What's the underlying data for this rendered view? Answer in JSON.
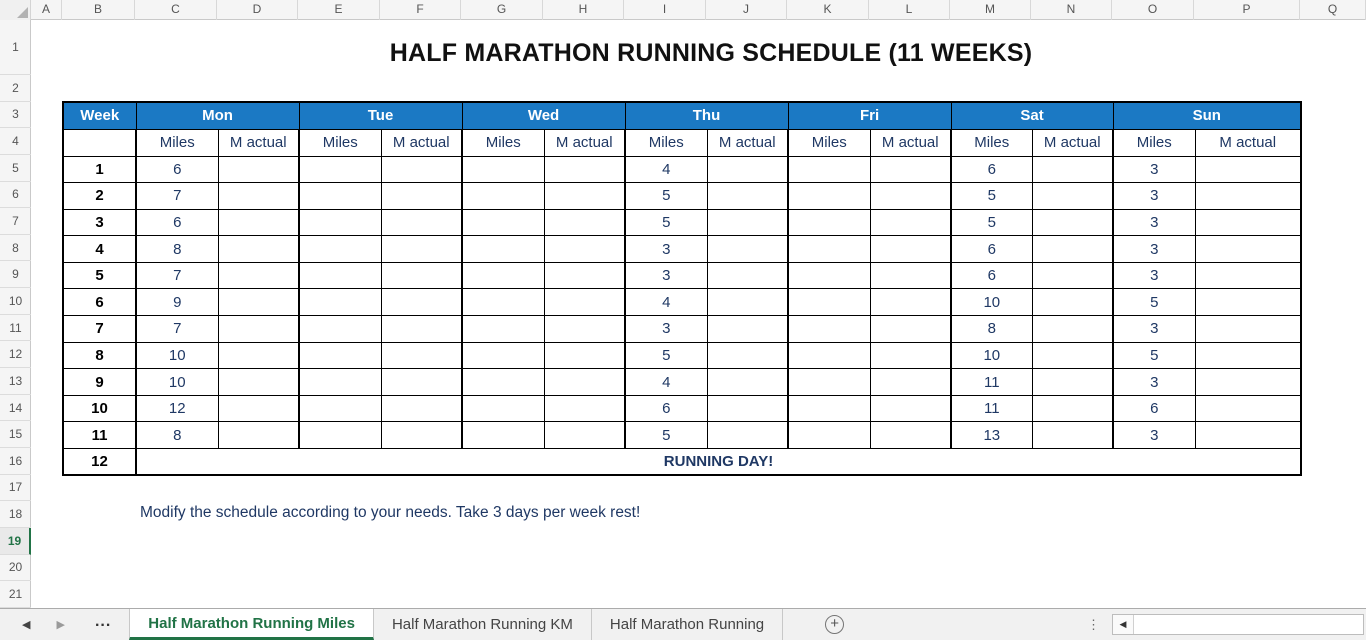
{
  "title": "HALF MARATHON RUNNING SCHEDULE (11 WEEKS)",
  "note": "Modify the schedule according to your needs. Take 3 days per week rest!",
  "grid": {
    "column_letters": [
      "A",
      "B",
      "C",
      "D",
      "E",
      "F",
      "G",
      "H",
      "I",
      "J",
      "K",
      "L",
      "M",
      "N",
      "O",
      "P",
      "Q"
    ],
    "row_numbers": [
      "1",
      "2",
      "3",
      "4",
      "5",
      "6",
      "7",
      "8",
      "9",
      "10",
      "11",
      "12",
      "13",
      "14",
      "15",
      "16",
      "17",
      "18",
      "19",
      "20",
      "21"
    ],
    "selected_row": "19"
  },
  "schedule": {
    "week_header": "Week",
    "days": [
      "Mon",
      "Tue",
      "Wed",
      "Thu",
      "Fri",
      "Sat",
      "Sun"
    ],
    "sub_headers": [
      "Miles",
      "M actual"
    ],
    "rows": [
      {
        "week": "1",
        "cells": [
          "6",
          "",
          "",
          "",
          "",
          "",
          "4",
          "",
          "",
          "",
          "6",
          "",
          "3",
          ""
        ]
      },
      {
        "week": "2",
        "cells": [
          "7",
          "",
          "",
          "",
          "",
          "",
          "5",
          "",
          "",
          "",
          "5",
          "",
          "3",
          ""
        ]
      },
      {
        "week": "3",
        "cells": [
          "6",
          "",
          "",
          "",
          "",
          "",
          "5",
          "",
          "",
          "",
          "5",
          "",
          "3",
          ""
        ]
      },
      {
        "week": "4",
        "cells": [
          "8",
          "",
          "",
          "",
          "",
          "",
          "3",
          "",
          "",
          "",
          "6",
          "",
          "3",
          ""
        ]
      },
      {
        "week": "5",
        "cells": [
          "7",
          "",
          "",
          "",
          "",
          "",
          "3",
          "",
          "",
          "",
          "6",
          "",
          "3",
          ""
        ]
      },
      {
        "week": "6",
        "cells": [
          "9",
          "",
          "",
          "",
          "",
          "",
          "4",
          "",
          "",
          "",
          "10",
          "",
          "5",
          ""
        ]
      },
      {
        "week": "7",
        "cells": [
          "7",
          "",
          "",
          "",
          "",
          "",
          "3",
          "",
          "",
          "",
          "8",
          "",
          "3",
          ""
        ]
      },
      {
        "week": "8",
        "cells": [
          "10",
          "",
          "",
          "",
          "",
          "",
          "5",
          "",
          "",
          "",
          "10",
          "",
          "5",
          ""
        ]
      },
      {
        "week": "9",
        "cells": [
          "10",
          "",
          "",
          "",
          "",
          "",
          "4",
          "",
          "",
          "",
          "11",
          "",
          "3",
          ""
        ]
      },
      {
        "week": "10",
        "cells": [
          "12",
          "",
          "",
          "",
          "",
          "",
          "6",
          "",
          "",
          "",
          "11",
          "",
          "6",
          ""
        ]
      },
      {
        "week": "11",
        "cells": [
          "8",
          "",
          "",
          "",
          "",
          "",
          "5",
          "",
          "",
          "",
          "13",
          "",
          "3",
          ""
        ]
      }
    ],
    "final_row": {
      "week": "12",
      "label": "RUNNING DAY!"
    }
  },
  "tabbar": {
    "sheets": [
      {
        "label": "Half Marathon Running Miles",
        "active": true
      },
      {
        "label": "Half Marathon Running KM",
        "active": false
      },
      {
        "label": "Half Marathon Running",
        "active": false
      }
    ],
    "icons": {
      "prev": "◀",
      "next": "▶",
      "more_tabs": "...",
      "add_sheet": "+",
      "more_menu": "⋮",
      "scroll_left": "◀"
    }
  },
  "colors": {
    "header_blue": "#1b79c4",
    "value_navy": "#1f3864",
    "excel_green": "#217346"
  }
}
